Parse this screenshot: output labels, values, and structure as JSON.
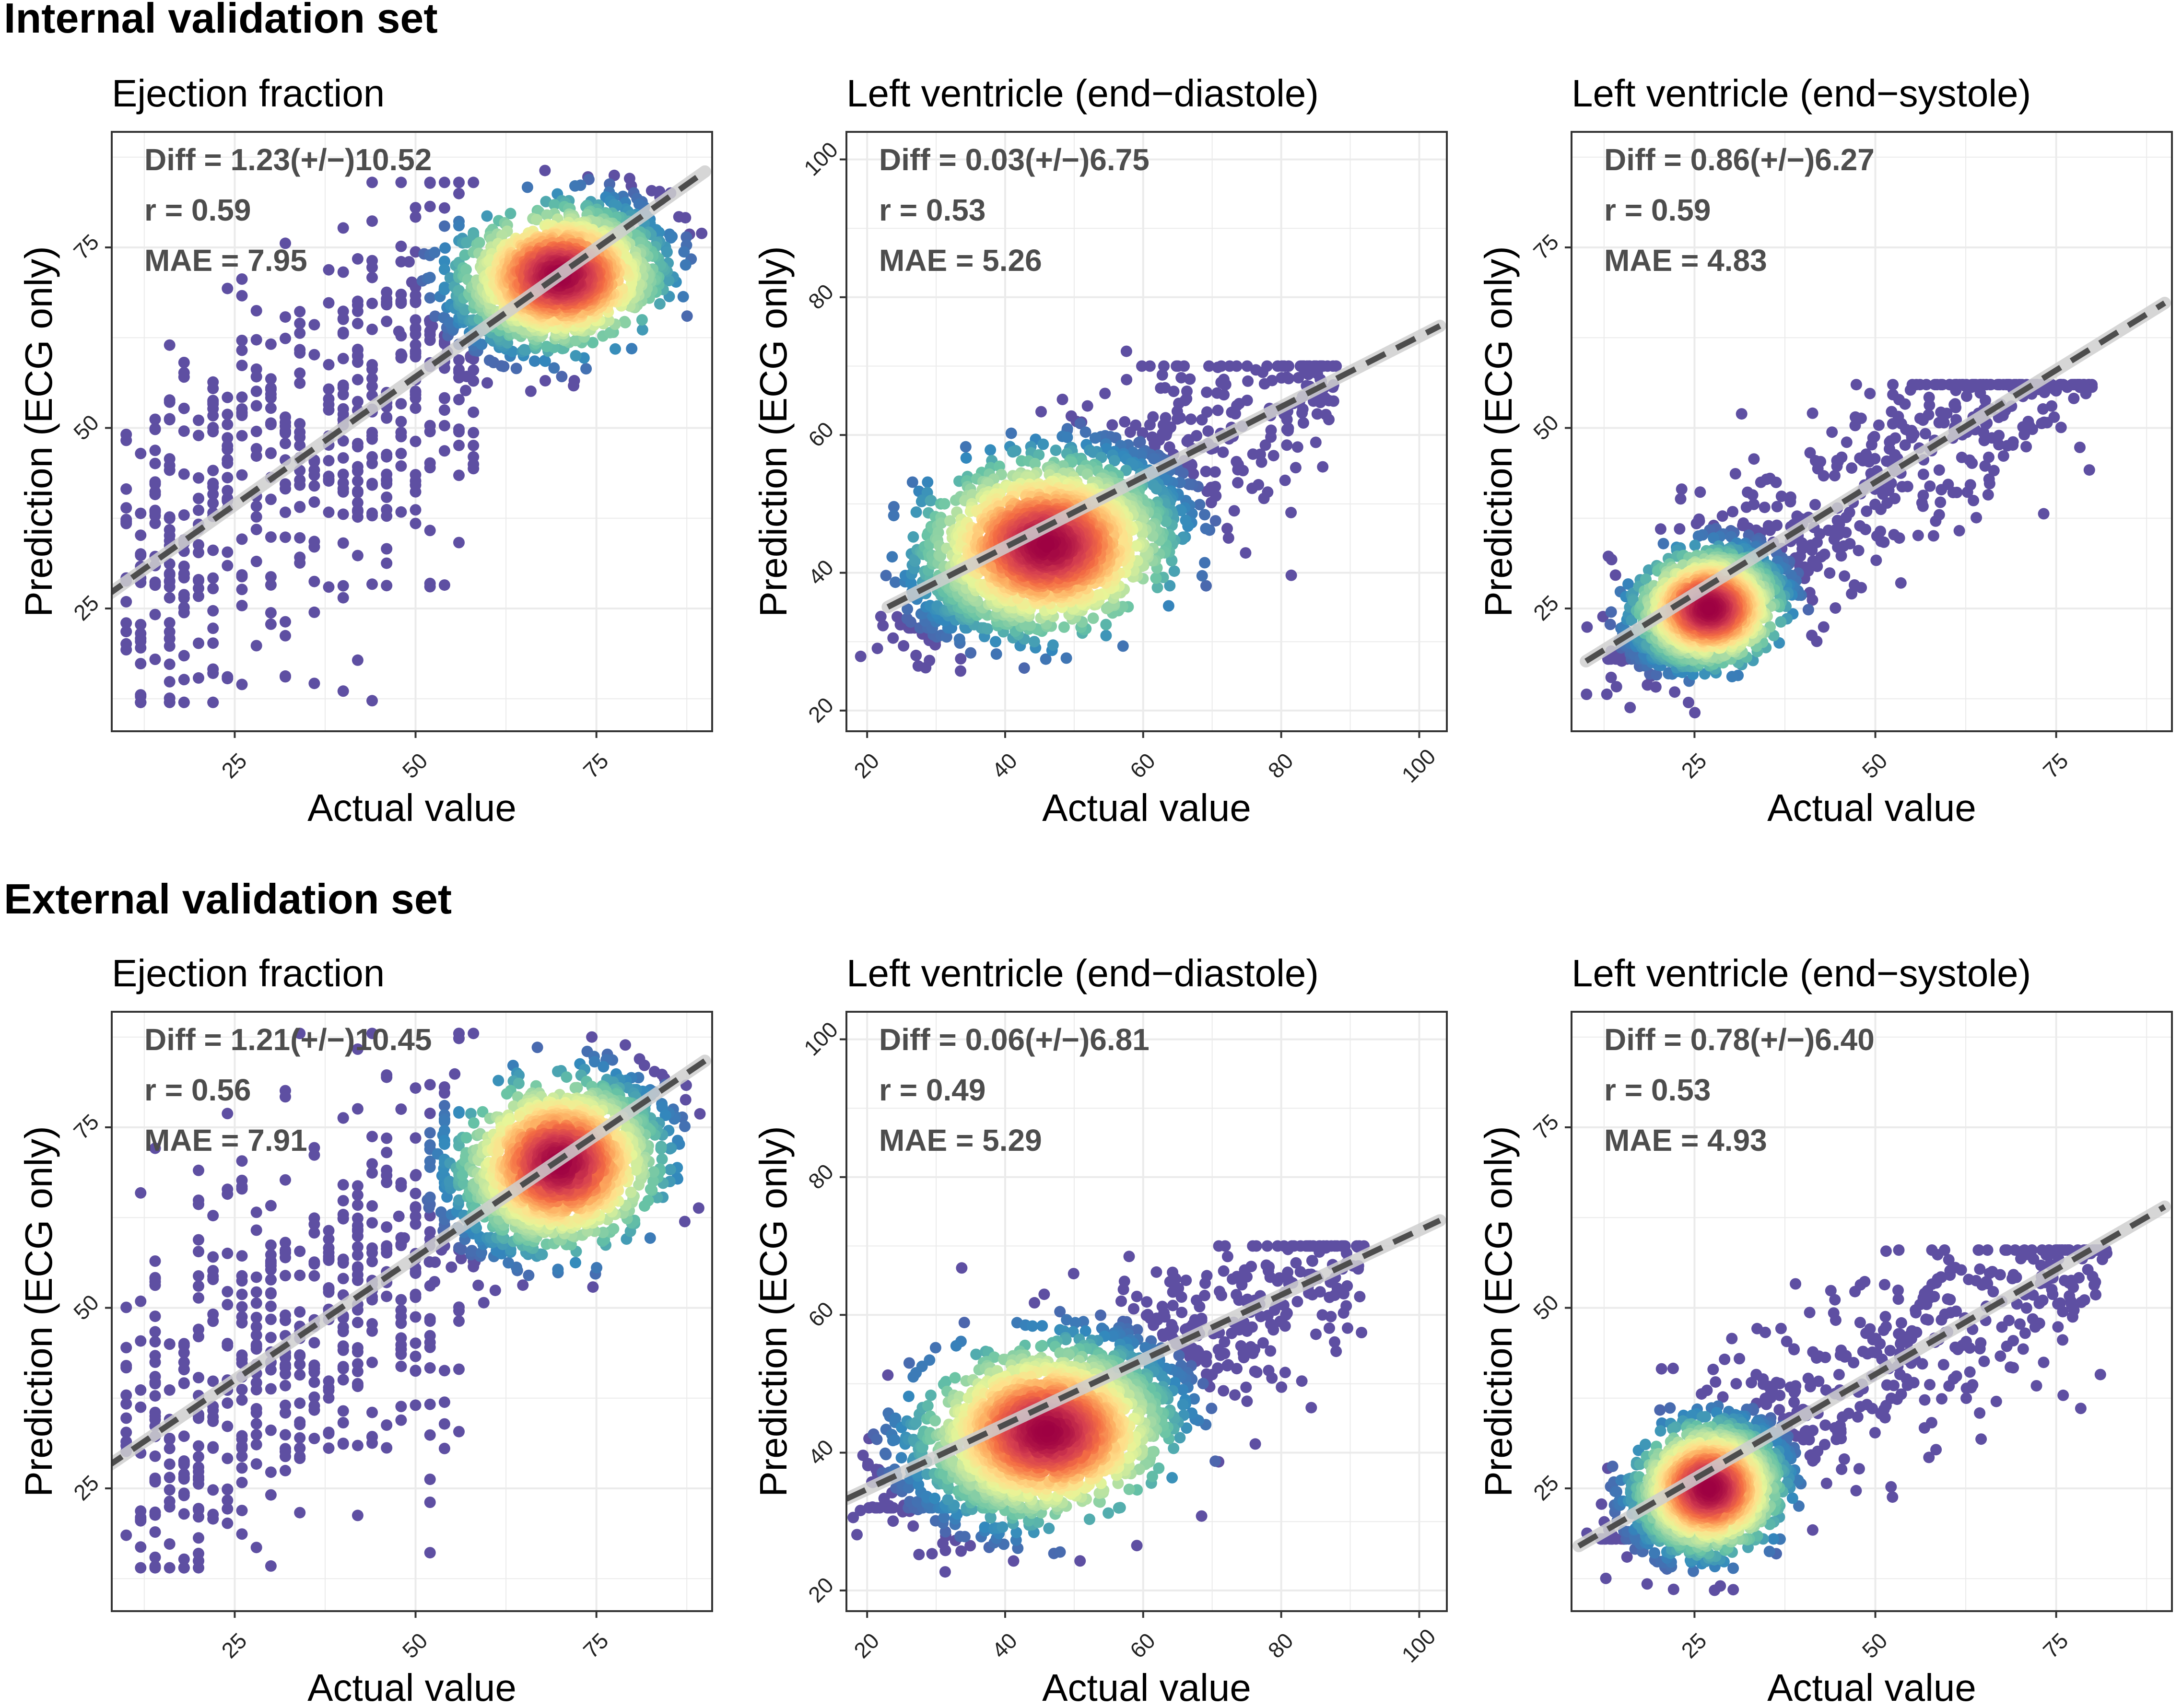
{
  "sections": [
    {
      "title": "Internal validation set"
    },
    {
      "title": "External validation set"
    }
  ],
  "axis_text": {
    "xlabel": "Actual value",
    "ylabel": "Prediction (ECG only)"
  },
  "colors": {
    "grid": "#ebebeb",
    "panel_border": "#333333",
    "text": "#000000",
    "stats_text": "#4d4d4d",
    "fit_line": "#4d4d4d",
    "fit_band": "#cfcfcf",
    "density_ramp": [
      "#5e4fa2",
      "#3288bd",
      "#66c2a5",
      "#abdda4",
      "#e6f598",
      "#fee08b",
      "#fdae61",
      "#f46d43",
      "#d53e4f",
      "#9e0142"
    ]
  },
  "chart_data": [
    {
      "type": "scatter",
      "section": 0,
      "title": "Ejection fraction",
      "xlabel": "Actual value",
      "ylabel": "Prediction (ECG only)",
      "xlim": [
        8,
        91
      ],
      "ylim": [
        8,
        91
      ],
      "xticks": [
        25,
        50,
        75
      ],
      "yticks": [
        25,
        50,
        75
      ],
      "stats": {
        "diff": "Diff = 1.23(+/−)10.52",
        "r": "r = 0.59",
        "mae": "MAE = 7.95"
      },
      "fit": {
        "intercept": 21.6,
        "slope": 0.71
      },
      "cluster": {
        "center": [
          70,
          71
        ],
        "spread": [
          7,
          5
        ]
      },
      "tail": {
        "xmin": 10,
        "xmax": 58,
        "ymin": 12,
        "ymax": 84,
        "discrete": true
      }
    },
    {
      "type": "scatter",
      "section": 0,
      "title": "Left ventricle (end−diastole)",
      "xlabel": "Actual value",
      "ylabel": "Prediction (ECG only)",
      "xlim": [
        17,
        104
      ],
      "ylim": [
        17,
        104
      ],
      "xticks": [
        20,
        40,
        60,
        80,
        100
      ],
      "yticks": [
        20,
        40,
        60,
        80,
        100
      ],
      "stats": {
        "diff": "Diff = 0.03(+/−)6.75",
        "r": "r = 0.53",
        "mae": "MAE = 5.26"
      },
      "fit": {
        "intercept": 23.3,
        "slope": 0.51
      },
      "cluster": {
        "center": [
          46,
          44
        ],
        "spread": [
          9,
          6.5
        ]
      },
      "tail": {
        "xmin": 26,
        "xmax": 88,
        "ymin": 32,
        "ymax": 70,
        "discrete": false
      }
    },
    {
      "type": "scatter",
      "section": 0,
      "title": "Left ventricle (end−systole)",
      "xlabel": "Actual value",
      "ylabel": "Prediction (ECG only)",
      "xlim": [
        8,
        91
      ],
      "ylim": [
        8,
        91
      ],
      "xticks": [
        25,
        50,
        75
      ],
      "yticks": [
        25,
        50,
        75
      ],
      "stats": {
        "diff": "Diff = 0.86(+/−)6.27",
        "r": "r = 0.59",
        "mae": "MAE = 4.83"
      },
      "fit": {
        "intercept": 11.5,
        "slope": 0.62
      },
      "cluster": {
        "center": [
          27,
          25
        ],
        "spread": [
          5,
          4
        ]
      },
      "tail": {
        "xmin": 13,
        "xmax": 80,
        "ymin": 18,
        "ymax": 56,
        "discrete": false
      }
    },
    {
      "type": "scatter",
      "section": 1,
      "title": "Ejection fraction",
      "xlabel": "Actual value",
      "ylabel": "Prediction (ECG only)",
      "xlim": [
        8,
        91
      ],
      "ylim": [
        8,
        91
      ],
      "xticks": [
        25,
        50,
        75
      ],
      "yticks": [
        25,
        50,
        75
      ],
      "stats": {
        "diff": "Diff = 1.21(+/−)10.45",
        "r": "r = 0.56",
        "mae": "MAE = 7.91"
      },
      "fit": {
        "intercept": 23.0,
        "slope": 0.68
      },
      "cluster": {
        "center": [
          70,
          70
        ],
        "spread": [
          7,
          6
        ]
      },
      "tail": {
        "xmin": 10,
        "xmax": 58,
        "ymin": 14,
        "ymax": 88,
        "discrete": true
      }
    },
    {
      "type": "scatter",
      "section": 1,
      "title": "Left ventricle (end−diastole)",
      "xlabel": "Actual value",
      "ylabel": "Prediction (ECG only)",
      "xlim": [
        17,
        104
      ],
      "ylim": [
        17,
        104
      ],
      "xticks": [
        20,
        40,
        60,
        80,
        100
      ],
      "yticks": [
        20,
        40,
        60,
        80,
        100
      ],
      "stats": {
        "diff": "Diff = 0.06(+/−)6.81",
        "r": "r = 0.49",
        "mae": "MAE = 5.29"
      },
      "fit": {
        "intercept": 25.3,
        "slope": 0.47
      },
      "cluster": {
        "center": [
          46,
          43
        ],
        "spread": [
          9,
          6.5
        ]
      },
      "tail": {
        "xmin": 20,
        "xmax": 92,
        "ymin": 32,
        "ymax": 70,
        "discrete": false
      }
    },
    {
      "type": "scatter",
      "section": 1,
      "title": "Left ventricle (end−systole)",
      "xlabel": "Actual value",
      "ylabel": "Prediction (ECG only)",
      "xlim": [
        8,
        91
      ],
      "ylim": [
        8,
        91
      ],
      "xticks": [
        25,
        50,
        75
      ],
      "yticks": [
        25,
        50,
        75
      ],
      "stats": {
        "diff": "Diff = 0.78(+/−)6.40",
        "r": "r = 0.53",
        "mae": "MAE = 4.93"
      },
      "fit": {
        "intercept": 11.8,
        "slope": 0.58
      },
      "cluster": {
        "center": [
          27,
          25
        ],
        "spread": [
          5,
          4.5
        ]
      },
      "tail": {
        "xmin": 12,
        "xmax": 82,
        "ymin": 18,
        "ymax": 58,
        "discrete": false
      }
    }
  ]
}
